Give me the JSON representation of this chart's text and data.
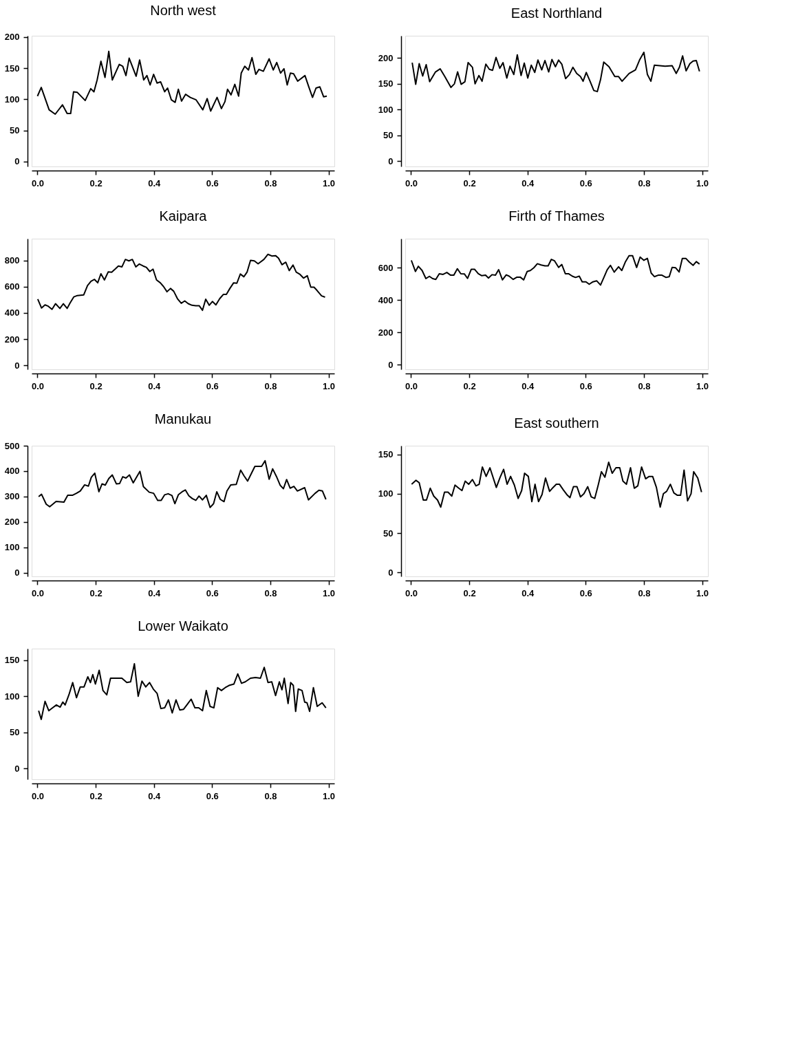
{
  "chart_data": [
    {
      "type": "line",
      "title": "North west",
      "xlim": [
        -0.02,
        1.02
      ],
      "xticks": [
        {
          "value": 0,
          "label": "0.0"
        },
        {
          "value": 0.2,
          "label": "0.2"
        },
        {
          "value": 0.4,
          "label": "0.4"
        },
        {
          "value": 0.6,
          "label": "0.6"
        },
        {
          "value": 0.8,
          "label": "0.8"
        },
        {
          "value": 1,
          "label": "1.0"
        }
      ],
      "ylim": [
        -8,
        202
      ],
      "yticks": [
        0,
        50,
        100,
        150,
        200
      ],
      "grid": false,
      "series": [
        {
          "color": "#000000",
          "x": [
            0.0,
            0.013,
            0.04,
            0.061,
            0.086,
            0.102,
            0.114,
            0.124,
            0.137,
            0.164,
            0.183,
            0.194,
            0.205,
            0.218,
            0.232,
            0.245,
            0.257,
            0.281,
            0.293,
            0.304,
            0.315,
            0.339,
            0.351,
            0.365,
            0.376,
            0.387,
            0.399,
            0.411,
            0.423,
            0.437,
            0.447,
            0.46,
            0.473,
            0.484,
            0.495,
            0.509,
            0.525,
            0.545,
            0.568,
            0.583,
            0.595,
            0.617,
            0.632,
            0.644,
            0.653,
            0.665,
            0.678,
            0.691,
            0.7,
            0.712,
            0.725,
            0.737,
            0.75,
            0.761,
            0.776,
            0.796,
            0.81,
            0.822,
            0.835,
            0.847,
            0.858,
            0.869,
            0.88,
            0.894,
            0.919,
            0.932,
            0.945,
            0.957,
            0.97,
            0.983,
            0.994
          ],
          "values": [
            105,
            119,
            83,
            76,
            91,
            77,
            77,
            112,
            111,
            98,
            117,
            112,
            131,
            161,
            135,
            177,
            131,
            156,
            153,
            138,
            166,
            137,
            163,
            131,
            138,
            123,
            140,
            126,
            128,
            112,
            118,
            99,
            95,
            116,
            97,
            108,
            103,
            99,
            83,
            101,
            81,
            103,
            85,
            96,
            116,
            107,
            124,
            105,
            142,
            153,
            147,
            167,
            140,
            148,
            145,
            165,
            147,
            159,
            142,
            149,
            123,
            142,
            141,
            129,
            138,
            120,
            103,
            118,
            120,
            104,
            105
          ]
        }
      ]
    },
    {
      "type": "line",
      "title": "East Northland",
      "xlim": [
        -0.02,
        1.02
      ],
      "xticks": [
        {
          "value": 0,
          "label": "0.0"
        },
        {
          "value": 0.2,
          "label": "0.2"
        },
        {
          "value": 0.4,
          "label": "0.4"
        },
        {
          "value": 0.6,
          "label": "0.6"
        },
        {
          "value": 0.8,
          "label": "0.8"
        },
        {
          "value": 1,
          "label": "1.0"
        }
      ],
      "ylim": [
        -10,
        243
      ],
      "yticks": [
        0,
        50,
        100,
        150,
        200
      ],
      "grid": false,
      "series": [
        {
          "color": "#000000",
          "x": [
            0.004,
            0.016,
            0.028,
            0.04,
            0.052,
            0.064,
            0.084,
            0.1,
            0.116,
            0.137,
            0.149,
            0.16,
            0.172,
            0.185,
            0.196,
            0.211,
            0.22,
            0.233,
            0.244,
            0.257,
            0.269,
            0.28,
            0.292,
            0.305,
            0.316,
            0.329,
            0.34,
            0.353,
            0.365,
            0.378,
            0.389,
            0.401,
            0.413,
            0.425,
            0.436,
            0.449,
            0.46,
            0.473,
            0.484,
            0.496,
            0.507,
            0.518,
            0.531,
            0.544,
            0.556,
            0.569,
            0.582,
            0.591,
            0.602,
            0.615,
            0.628,
            0.64,
            0.651,
            0.662,
            0.68,
            0.7,
            0.713,
            0.725,
            0.749,
            0.771,
            0.785,
            0.8,
            0.812,
            0.824,
            0.836,
            0.873,
            0.897,
            0.911,
            0.922,
            0.933,
            0.945,
            0.958,
            0.969,
            0.98,
            0.991
          ],
          "values": [
            191,
            149,
            189,
            165,
            187,
            154,
            173,
            179,
            164,
            143,
            150,
            173,
            149,
            154,
            191,
            182,
            150,
            166,
            155,
            188,
            178,
            176,
            201,
            180,
            191,
            161,
            184,
            168,
            206,
            166,
            190,
            161,
            186,
            172,
            196,
            177,
            195,
            173,
            197,
            183,
            196,
            188,
            160,
            168,
            182,
            170,
            164,
            155,
            172,
            155,
            137,
            135,
            158,
            192,
            183,
            164,
            164,
            155,
            170,
            177,
            196,
            211,
            168,
            155,
            186,
            184,
            185,
            170,
            182,
            204,
            175,
            189,
            194,
            195,
            174
          ]
        }
      ]
    },
    {
      "type": "line",
      "title": "Kaipara",
      "xlim": [
        -0.02,
        1.02
      ],
      "xticks": [
        {
          "value": 0,
          "label": "0.0"
        },
        {
          "value": 0.2,
          "label": "0.2"
        },
        {
          "value": 0.4,
          "label": "0.4"
        },
        {
          "value": 0.6,
          "label": "0.6"
        },
        {
          "value": 0.8,
          "label": "0.8"
        },
        {
          "value": 1,
          "label": "1.0"
        }
      ],
      "ylim": [
        -30,
        965
      ],
      "yticks": [
        0,
        200,
        400,
        600,
        800
      ],
      "grid": false,
      "series": [
        {
          "color": "#000000",
          "x": [
            0.001,
            0.014,
            0.026,
            0.037,
            0.05,
            0.062,
            0.077,
            0.089,
            0.102,
            0.112,
            0.125,
            0.137,
            0.159,
            0.172,
            0.184,
            0.196,
            0.207,
            0.218,
            0.23,
            0.243,
            0.255,
            0.268,
            0.278,
            0.29,
            0.302,
            0.314,
            0.326,
            0.338,
            0.35,
            0.363,
            0.374,
            0.386,
            0.397,
            0.409,
            0.422,
            0.433,
            0.445,
            0.457,
            0.468,
            0.481,
            0.494,
            0.506,
            0.518,
            0.531,
            0.544,
            0.556,
            0.567,
            0.578,
            0.59,
            0.601,
            0.613,
            0.626,
            0.639,
            0.649,
            0.661,
            0.674,
            0.685,
            0.697,
            0.709,
            0.72,
            0.732,
            0.745,
            0.758,
            0.778,
            0.792,
            0.805,
            0.818,
            0.828,
            0.84,
            0.853,
            0.865,
            0.878,
            0.889,
            0.902,
            0.914,
            0.927,
            0.939,
            0.95,
            0.96,
            0.976,
            0.988
          ],
          "values": [
            505,
            437,
            461,
            451,
            427,
            470,
            434,
            470,
            434,
            475,
            522,
            532,
            537,
            608,
            641,
            655,
            629,
            698,
            651,
            712,
            710,
            736,
            757,
            750,
            807,
            796,
            807,
            750,
            772,
            757,
            747,
            715,
            733,
            651,
            629,
            601,
            561,
            586,
            565,
            508,
            473,
            491,
            470,
            458,
            454,
            454,
            420,
            504,
            458,
            487,
            461,
            508,
            541,
            541,
            586,
            629,
            626,
            696,
            675,
            710,
            800,
            796,
            774,
            807,
            846,
            833,
            836,
            817,
            767,
            786,
            722,
            764,
            710,
            693,
            665,
            683,
            596,
            596,
            572,
            530,
            520
          ]
        }
      ]
    },
    {
      "type": "line",
      "title": "Firth of Thames",
      "xlim": [
        -0.02,
        1.02
      ],
      "xticks": [
        {
          "value": 0,
          "label": "0.0"
        },
        {
          "value": 0.2,
          "label": "0.2"
        },
        {
          "value": 0.4,
          "label": "0.4"
        },
        {
          "value": 0.6,
          "label": "0.6"
        },
        {
          "value": 0.8,
          "label": "0.8"
        },
        {
          "value": 1,
          "label": "1.0"
        }
      ],
      "ylim": [
        -29,
        780
      ],
      "yticks": [
        0,
        200,
        400,
        600
      ],
      "grid": false,
      "series": [
        {
          "color": "#000000",
          "x": [
            0.001,
            0.015,
            0.025,
            0.038,
            0.051,
            0.063,
            0.074,
            0.085,
            0.097,
            0.11,
            0.123,
            0.136,
            0.147,
            0.159,
            0.171,
            0.183,
            0.194,
            0.207,
            0.218,
            0.231,
            0.243,
            0.256,
            0.266,
            0.278,
            0.29,
            0.301,
            0.314,
            0.327,
            0.337,
            0.351,
            0.364,
            0.375,
            0.387,
            0.399,
            0.41,
            0.422,
            0.434,
            0.447,
            0.46,
            0.471,
            0.482,
            0.493,
            0.507,
            0.518,
            0.53,
            0.541,
            0.554,
            0.565,
            0.578,
            0.588,
            0.601,
            0.612,
            0.625,
            0.638,
            0.651,
            0.663,
            0.674,
            0.685,
            0.698,
            0.713,
            0.724,
            0.736,
            0.749,
            0.761,
            0.775,
            0.787,
            0.8,
            0.812,
            0.825,
            0.836,
            0.849,
            0.862,
            0.876,
            0.887,
            0.897,
            0.909,
            0.921,
            0.932,
            0.944,
            0.956,
            0.969,
            0.98,
            0.991
          ],
          "values": [
            646,
            577,
            609,
            583,
            533,
            547,
            533,
            528,
            563,
            559,
            571,
            554,
            554,
            594,
            563,
            562,
            534,
            591,
            591,
            563,
            551,
            554,
            536,
            557,
            554,
            588,
            525,
            556,
            548,
            528,
            542,
            542,
            525,
            577,
            583,
            600,
            625,
            617,
            612,
            612,
            652,
            643,
            602,
            620,
            563,
            563,
            548,
            540,
            548,
            513,
            513,
            498,
            513,
            519,
            493,
            542,
            588,
            615,
            573,
            606,
            583,
            635,
            675,
            675,
            602,
            666,
            646,
            658,
            567,
            545,
            554,
            554,
            540,
            545,
            602,
            600,
            574,
            658,
            658,
            635,
            615,
            638,
            623
          ]
        }
      ]
    },
    {
      "type": "line",
      "title": "Manukau",
      "xlim": [
        -0.02,
        1.02
      ],
      "xticks": [
        {
          "value": 0,
          "label": "0.0"
        },
        {
          "value": 0.2,
          "label": "0.2"
        },
        {
          "value": 0.4,
          "label": "0.4"
        },
        {
          "value": 0.6,
          "label": "0.6"
        },
        {
          "value": 0.8,
          "label": "0.8"
        },
        {
          "value": 1,
          "label": "1.0"
        }
      ],
      "ylim": [
        -14,
        500
      ],
      "yticks": [
        0,
        100,
        200,
        300,
        400,
        500
      ],
      "grid": false,
      "series": [
        {
          "color": "#000000",
          "x": [
            0.004,
            0.014,
            0.03,
            0.042,
            0.064,
            0.091,
            0.104,
            0.12,
            0.134,
            0.147,
            0.162,
            0.175,
            0.185,
            0.197,
            0.211,
            0.222,
            0.233,
            0.245,
            0.257,
            0.271,
            0.282,
            0.293,
            0.304,
            0.316,
            0.329,
            0.352,
            0.364,
            0.384,
            0.399,
            0.413,
            0.425,
            0.437,
            0.449,
            0.462,
            0.472,
            0.484,
            0.497,
            0.508,
            0.52,
            0.532,
            0.544,
            0.555,
            0.567,
            0.58,
            0.593,
            0.605,
            0.616,
            0.628,
            0.641,
            0.651,
            0.664,
            0.683,
            0.698,
            0.71,
            0.722,
            0.735,
            0.747,
            0.77,
            0.782,
            0.796,
            0.808,
            0.821,
            0.834,
            0.845,
            0.856,
            0.868,
            0.881,
            0.893,
            0.918,
            0.931,
            0.954,
            0.967,
            0.979,
            0.991
          ],
          "values": [
            300,
            309,
            270,
            260,
            281,
            278,
            305,
            305,
            313,
            322,
            346,
            341,
            376,
            392,
            319,
            350,
            345,
            371,
            385,
            350,
            351,
            378,
            373,
            385,
            354,
            399,
            339,
            317,
            313,
            285,
            285,
            307,
            311,
            304,
            272,
            307,
            319,
            326,
            303,
            292,
            285,
            302,
            287,
            305,
            257,
            272,
            319,
            289,
            280,
            322,
            346,
            348,
            404,
            381,
            361,
            391,
            419,
            419,
            441,
            368,
            409,
            379,
            344,
            331,
            367,
            333,
            340,
            322,
            335,
            287,
            313,
            325,
            322,
            289
          ]
        }
      ]
    },
    {
      "type": "line",
      "title": "East southern",
      "xlim": [
        -0.02,
        1.02
      ],
      "xticks": [
        {
          "value": 0,
          "label": "0.0"
        },
        {
          "value": 0.2,
          "label": "0.2"
        },
        {
          "value": 0.4,
          "label": "0.4"
        },
        {
          "value": 0.6,
          "label": "0.6"
        },
        {
          "value": 0.8,
          "label": "0.8"
        },
        {
          "value": 1,
          "label": "1.0"
        }
      ],
      "ylim": [
        -5,
        161
      ],
      "yticks": [
        0,
        50,
        100,
        150
      ],
      "grid": false,
      "series": [
        {
          "color": "#000000",
          "x": [
            0.002,
            0.017,
            0.028,
            0.042,
            0.053,
            0.066,
            0.078,
            0.091,
            0.102,
            0.115,
            0.127,
            0.14,
            0.151,
            0.164,
            0.175,
            0.186,
            0.198,
            0.211,
            0.223,
            0.234,
            0.245,
            0.258,
            0.271,
            0.293,
            0.306,
            0.318,
            0.33,
            0.342,
            0.355,
            0.368,
            0.38,
            0.39,
            0.403,
            0.415,
            0.426,
            0.438,
            0.45,
            0.462,
            0.476,
            0.488,
            0.499,
            0.51,
            0.523,
            0.535,
            0.546,
            0.558,
            0.57,
            0.582,
            0.594,
            0.607,
            0.619,
            0.631,
            0.643,
            0.654,
            0.666,
            0.679,
            0.691,
            0.704,
            0.717,
            0.728,
            0.74,
            0.754,
            0.767,
            0.779,
            0.792,
            0.806,
            0.818,
            0.83,
            0.843,
            0.856,
            0.867,
            0.878,
            0.891,
            0.903,
            0.915,
            0.926,
            0.938,
            0.95,
            0.962,
            0.971,
            0.985,
            0.998
          ],
          "values": [
            112,
            117,
            114,
            92,
            92,
            107,
            97,
            92,
            83,
            102,
            102,
            97,
            111,
            107,
            104,
            116,
            112,
            118,
            110,
            112,
            134,
            122,
            133,
            108,
            121,
            131,
            112,
            122,
            111,
            94,
            104,
            126,
            122,
            90,
            112,
            90,
            99,
            120,
            103,
            108,
            112,
            112,
            105,
            99,
            95,
            109,
            109,
            96,
            100,
            109,
            96,
            94,
            111,
            128,
            121,
            140,
            126,
            133,
            133,
            116,
            112,
            133,
            107,
            110,
            134,
            119,
            122,
            122,
            108,
            83,
            100,
            103,
            112,
            101,
            98,
            98,
            130,
            91,
            100,
            128,
            120,
            102
          ]
        }
      ]
    },
    {
      "type": "line",
      "title": "Lower Waikato",
      "xlim": [
        -0.02,
        1.02
      ],
      "xticks": [
        {
          "value": 0,
          "label": "0.0"
        },
        {
          "value": 0.2,
          "label": "0.2"
        },
        {
          "value": 0.4,
          "label": "0.4"
        },
        {
          "value": 0.6,
          "label": "0.6"
        },
        {
          "value": 0.8,
          "label": "0.8"
        },
        {
          "value": 1,
          "label": "1.0"
        }
      ],
      "ylim": [
        -15,
        166
      ],
      "yticks": [
        0,
        50,
        100,
        150
      ],
      "grid": false,
      "series": [
        {
          "color": "#000000",
          "x": [
            0.004,
            0.013,
            0.026,
            0.039,
            0.052,
            0.065,
            0.078,
            0.087,
            0.095,
            0.108,
            0.121,
            0.134,
            0.147,
            0.16,
            0.173,
            0.182,
            0.19,
            0.199,
            0.212,
            0.225,
            0.238,
            0.251,
            0.264,
            0.29,
            0.307,
            0.32,
            0.333,
            0.346,
            0.359,
            0.372,
            0.385,
            0.398,
            0.411,
            0.424,
            0.437,
            0.45,
            0.463,
            0.476,
            0.489,
            0.502,
            0.515,
            0.528,
            0.541,
            0.554,
            0.567,
            0.58,
            0.593,
            0.606,
            0.619,
            0.632,
            0.645,
            0.658,
            0.675,
            0.688,
            0.701,
            0.714,
            0.732,
            0.749,
            0.766,
            0.779,
            0.792,
            0.805,
            0.818,
            0.831,
            0.84,
            0.848,
            0.861,
            0.87,
            0.879,
            0.887,
            0.896,
            0.909,
            0.918,
            0.926,
            0.935,
            0.948,
            0.961,
            0.978,
            0.991
          ],
          "values": [
            80,
            68,
            93,
            80,
            84,
            88,
            85,
            92,
            88,
            102,
            119,
            98,
            113,
            113,
            127,
            119,
            130,
            117,
            136,
            108,
            102,
            125,
            125,
            125,
            119,
            120,
            145,
            100,
            121,
            113,
            119,
            110,
            104,
            83,
            84,
            95,
            77,
            95,
            81,
            82,
            89,
            96,
            84,
            84,
            80,
            108,
            86,
            84,
            112,
            108,
            112,
            115,
            117,
            131,
            118,
            120,
            125,
            126,
            125,
            140,
            119,
            120,
            101,
            120,
            109,
            125,
            90,
            119,
            115,
            79,
            110,
            108,
            92,
            91,
            79,
            112,
            86,
            91,
            84
          ]
        }
      ]
    }
  ]
}
